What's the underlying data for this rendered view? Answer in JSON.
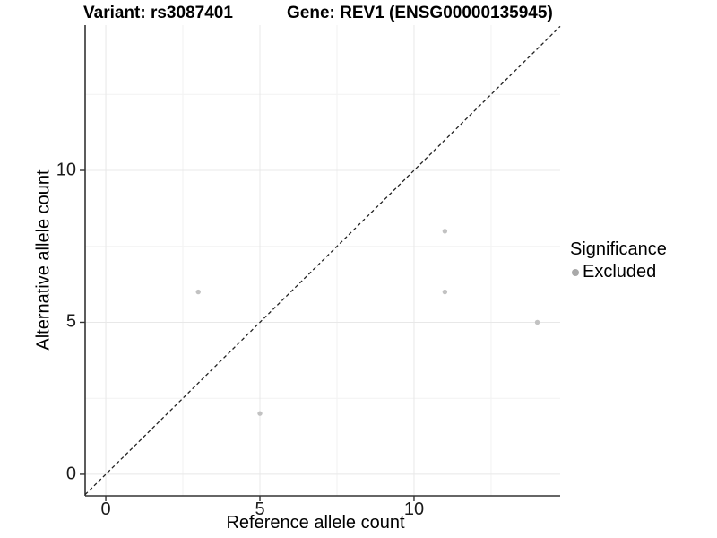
{
  "chart_data": {
    "type": "scatter",
    "title_left": "Variant: rs3087401",
    "title_right": "Gene: REV1 (ENSG00000135945)",
    "xlabel": "Reference allele count",
    "ylabel": "Alternative allele count",
    "x_ticks": [
      0,
      5,
      10
    ],
    "y_ticks": [
      0,
      5,
      10
    ],
    "x_minor_gridlines": [
      2.5,
      7.5,
      12.5
    ],
    "y_minor_gridlines": [
      2.5,
      7.5,
      12.5
    ],
    "xlim": [
      -0.67,
      14.74
    ],
    "ylim": [
      -0.71,
      14.78
    ],
    "points": [
      {
        "x": 3,
        "y": 6
      },
      {
        "x": 5,
        "y": 2
      },
      {
        "x": 11,
        "y": 8
      },
      {
        "x": 11,
        "y": 6
      },
      {
        "x": 14,
        "y": 5
      }
    ],
    "identity_line": true,
    "legend": {
      "position": "right",
      "title": "Significance",
      "items": [
        {
          "label": "Excluded",
          "color": "#a9a9a9"
        }
      ]
    },
    "colors": {
      "point": "#c2c2c2",
      "major_grid": "#e8e8e8",
      "minor_grid": "#f2f2f2",
      "axis_line": "#333333",
      "dashed_line": "#222222",
      "tick_text": "#1a1a1a"
    },
    "grid": "on"
  }
}
